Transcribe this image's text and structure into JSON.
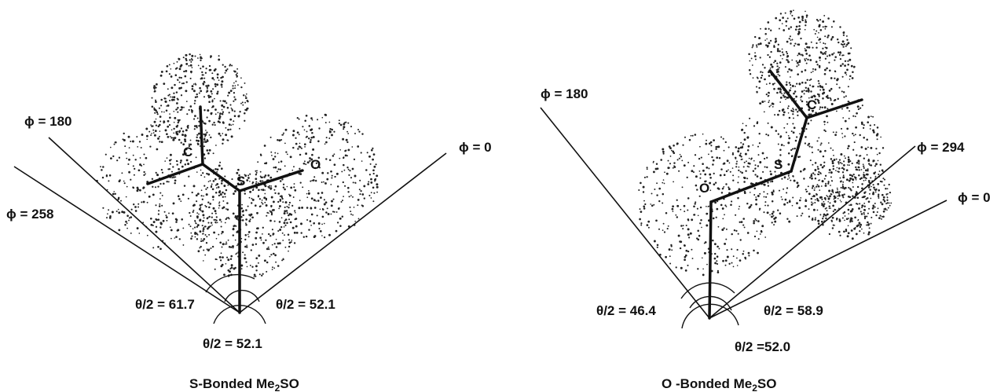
{
  "figure": {
    "left": {
      "caption_prefix": "S-Bonded Me",
      "caption_sub": "2",
      "caption_suffix": "SO",
      "atoms": {
        "c": "C",
        "s": "S",
        "o": "O"
      },
      "phi_labels": [
        "ϕ = 180",
        "ϕ = 258",
        "ϕ = 0"
      ],
      "theta_labels": [
        "θ/2 = 61.7",
        "θ/2 = 52.1",
        "θ/2 = 52.1"
      ]
    },
    "right": {
      "caption_prefix": "O -Bonded Me",
      "caption_sub": "2",
      "caption_suffix": "SO",
      "atoms": {
        "c": "C",
        "s": "S",
        "o": "O"
      },
      "phi_labels": [
        "ϕ = 180",
        "ϕ = 294",
        "ϕ = 0"
      ],
      "theta_labels": [
        "θ/2 = 46.4",
        "θ/2 = 58.9",
        "θ/2 =52.0"
      ]
    }
  }
}
